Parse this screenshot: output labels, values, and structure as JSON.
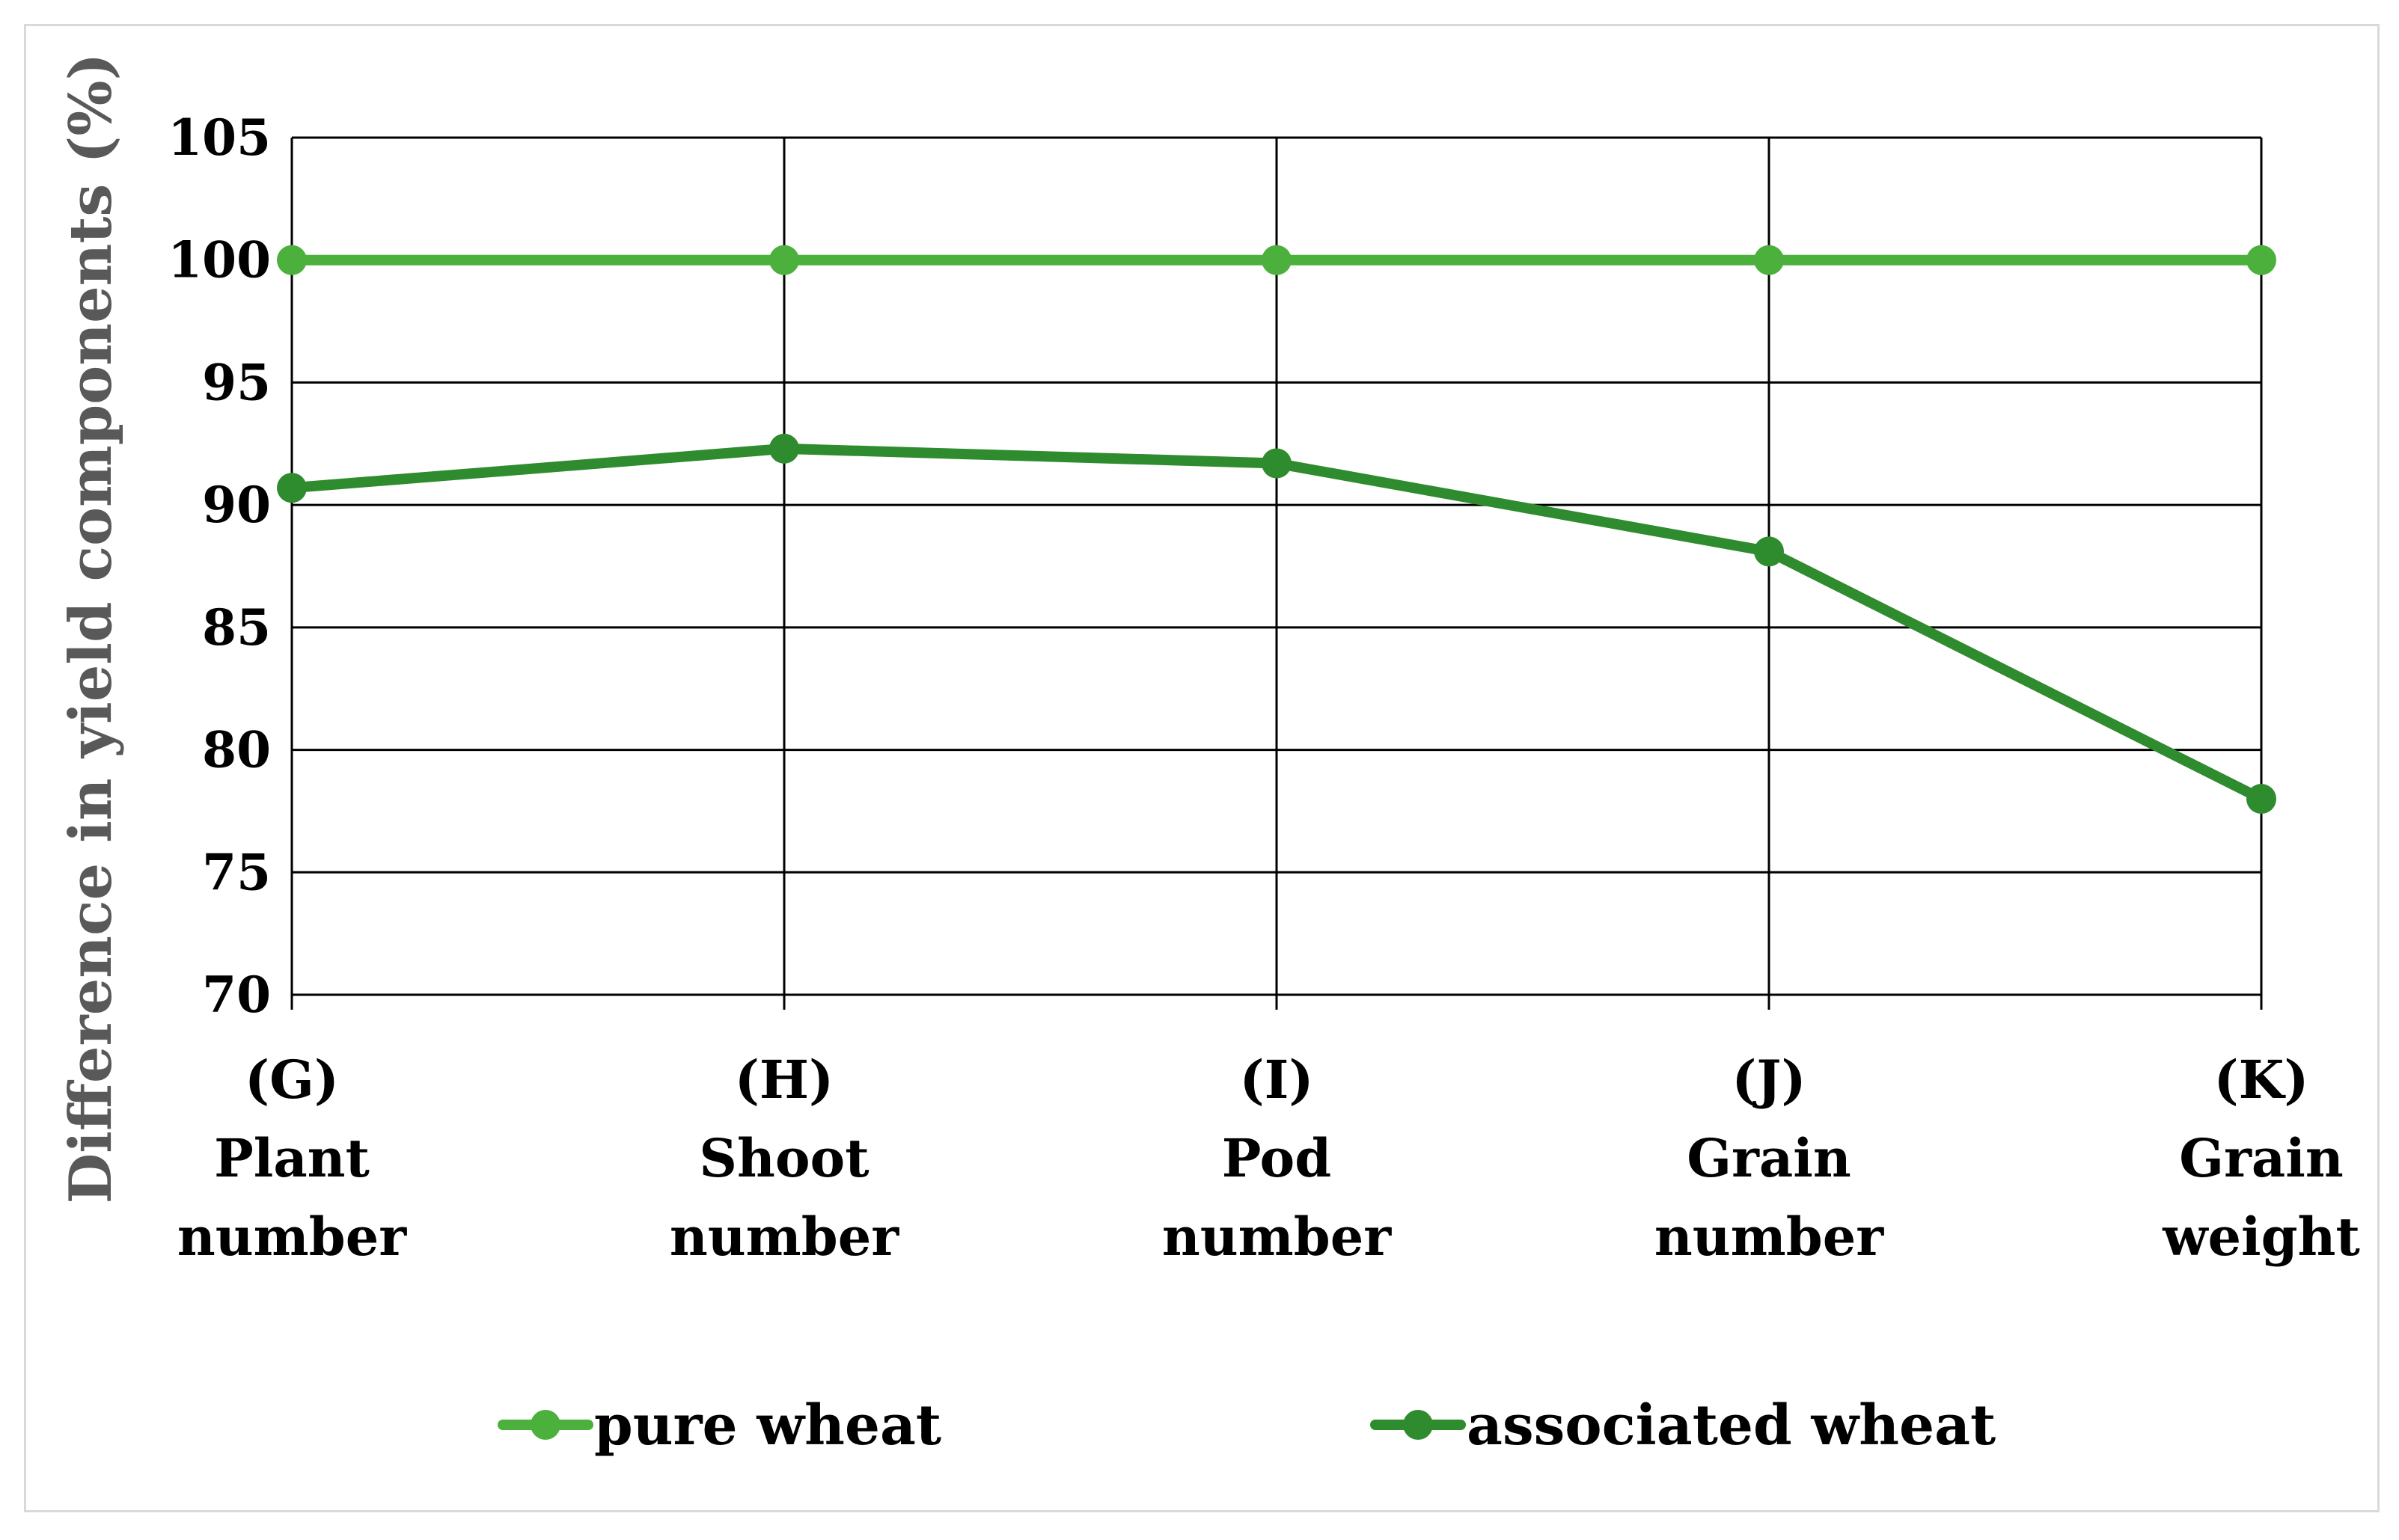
{
  "chart_data": {
    "type": "line",
    "title": "",
    "xlabel": "",
    "ylabel": "Difference in yield components (%)",
    "ylim": [
      70,
      105
    ],
    "yticks": [
      70,
      75,
      80,
      85,
      90,
      95,
      100,
      105
    ],
    "grid": true,
    "legend_position": "bottom",
    "categories": [
      [
        "(G)",
        "Plant",
        "number"
      ],
      [
        "(H)",
        "Shoot",
        "number"
      ],
      [
        "(I)",
        "Pod",
        "number"
      ],
      [
        "(J)",
        "Grain",
        "number"
      ],
      [
        "(K)",
        "Grain",
        "weight"
      ]
    ],
    "series": [
      {
        "name": "pure wheat",
        "color": "#4cb03c",
        "values": [
          100,
          100,
          100,
          100,
          100
        ]
      },
      {
        "name": "associated wheat",
        "color": "#2e8b2e",
        "values": [
          90.7,
          92.3,
          91.7,
          88.1,
          78.0
        ]
      }
    ]
  }
}
